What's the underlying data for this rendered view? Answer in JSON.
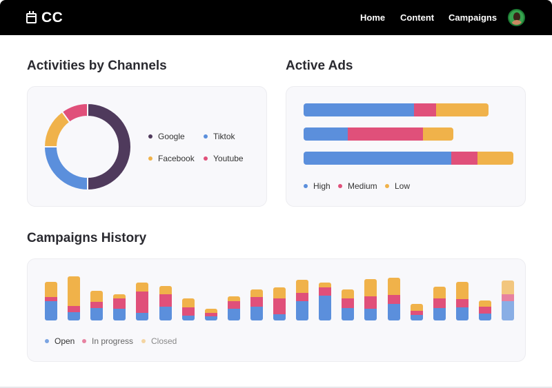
{
  "app": {
    "logo_text": "CC"
  },
  "nav": {
    "items": [
      "Home",
      "Content",
      "Campaigns"
    ]
  },
  "colors": {
    "google": "#4f3a5c",
    "tiktok": "#5b8fdc",
    "facebook": "#f0b24a",
    "youtube": "#e0507a",
    "high": "#5b8fdc",
    "medium": "#e0507a",
    "low": "#f0b24a",
    "open": "#5b8fdc",
    "in_progress": "#e0507a",
    "closed": "#f0b24a"
  },
  "activities": {
    "title": "Activities by Channels",
    "legend": [
      "Google",
      "Tiktok",
      "Facebook",
      "Youtube"
    ]
  },
  "active_ads": {
    "title": "Active Ads",
    "legend": [
      "High",
      "Medium",
      "Low"
    ]
  },
  "history": {
    "title": "Campaigns History",
    "legend": [
      "Open",
      "In progress",
      "Closed"
    ]
  },
  "chart_data": [
    {
      "type": "pie",
      "title": "Activities by Channels",
      "categories": [
        "Google",
        "Tiktok",
        "Facebook",
        "Youtube"
      ],
      "values": [
        50,
        25,
        15,
        10
      ]
    },
    {
      "type": "bar",
      "title": "Active Ads",
      "orientation": "horizontal",
      "stacked": true,
      "series": [
        {
          "name": "High",
          "values": [
            160,
            64,
            214
          ]
        },
        {
          "name": "Medium",
          "values": [
            32,
            109,
            38
          ]
        },
        {
          "name": "Low",
          "values": [
            76,
            44,
            52
          ]
        }
      ]
    },
    {
      "type": "bar",
      "title": "Campaigns History",
      "stacked": true,
      "series": [
        {
          "name": "Open",
          "values": [
            28,
            12,
            18,
            17,
            11,
            20,
            7,
            6,
            17,
            20,
            9,
            28,
            36,
            18,
            17,
            24,
            8,
            18,
            19,
            10,
            28
          ]
        },
        {
          "name": "In progress",
          "values": [
            6,
            9,
            9,
            15,
            31,
            18,
            12,
            5,
            11,
            14,
            23,
            12,
            12,
            14,
            18,
            13,
            6,
            14,
            12,
            10,
            10
          ]
        },
        {
          "name": "Closed",
          "values": [
            22,
            43,
            16,
            6,
            13,
            12,
            13,
            6,
            7,
            11,
            16,
            19,
            7,
            13,
            25,
            25,
            10,
            17,
            25,
            9,
            20
          ]
        }
      ]
    }
  ]
}
